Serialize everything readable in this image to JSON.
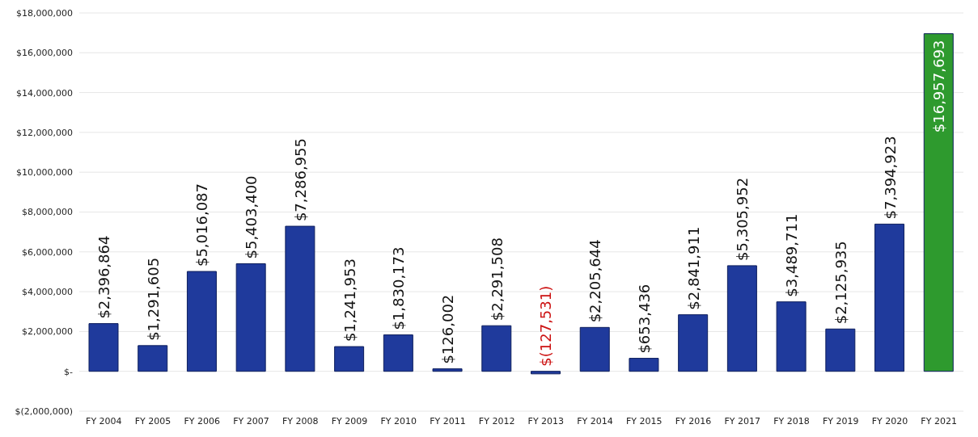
{
  "chart_data": {
    "type": "bar",
    "categories": [
      "FY 2004",
      "FY 2005",
      "FY 2006",
      "FY 2007",
      "FY 2008",
      "FY 2009",
      "FY 2010",
      "FY 2011",
      "FY 2012",
      "FY 2013",
      "FY 2014",
      "FY 2015",
      "FY 2016",
      "FY 2017",
      "FY 2018",
      "FY 2019",
      "FY 2020",
      "FY 2021"
    ],
    "values": [
      2396864,
      1291605,
      5016087,
      5403400,
      7286955,
      1241953,
      1830173,
      126002,
      2291508,
      -127531,
      2205644,
      653436,
      2841911,
      5305952,
      3489711,
      2125935,
      7394923,
      16957693
    ],
    "colors": [
      "#1f3a9c",
      "#1f3a9c",
      "#1f3a9c",
      "#1f3a9c",
      "#1f3a9c",
      "#1f3a9c",
      "#1f3a9c",
      "#1f3a9c",
      "#1f3a9c",
      "#1f3a9c",
      "#1f3a9c",
      "#1f3a9c",
      "#1f3a9c",
      "#1f3a9c",
      "#1f3a9c",
      "#1f3a9c",
      "#1f3a9c",
      "#2e9a2e"
    ],
    "value_labels": [
      "$2,396,864",
      "$1,291,605",
      "$5,016,087",
      "$5,403,400",
      "$7,286,955",
      "$1,241,953",
      "$1,830,173",
      "$126,002",
      "$2,291,508",
      "$(127,531)",
      "$2,205,644",
      "$653,436",
      "$2,841,911",
      "$5,305,952",
      "$3,489,711",
      "$2,125,935",
      "$7,394,923",
      "$16,957,693"
    ],
    "ylim": [
      -2000000,
      18000000
    ],
    "yticks": [
      {
        "value": -2000000,
        "label": "$(2,000,000)"
      },
      {
        "value": 0,
        "label": "$-"
      },
      {
        "value": 2000000,
        "label": "$2,000,000"
      },
      {
        "value": 4000000,
        "label": "$4,000,000"
      },
      {
        "value": 6000000,
        "label": "$6,000,000"
      },
      {
        "value": 8000000,
        "label": "$8,000,000"
      },
      {
        "value": 10000000,
        "label": "$10,000,000"
      },
      {
        "value": 12000000,
        "label": "$12,000,000"
      },
      {
        "value": 14000000,
        "label": "$14,000,000"
      },
      {
        "value": 16000000,
        "label": "$16,000,000"
      },
      {
        "value": 18000000,
        "label": "$18,000,000"
      }
    ],
    "grid": "y",
    "legend": false
  }
}
